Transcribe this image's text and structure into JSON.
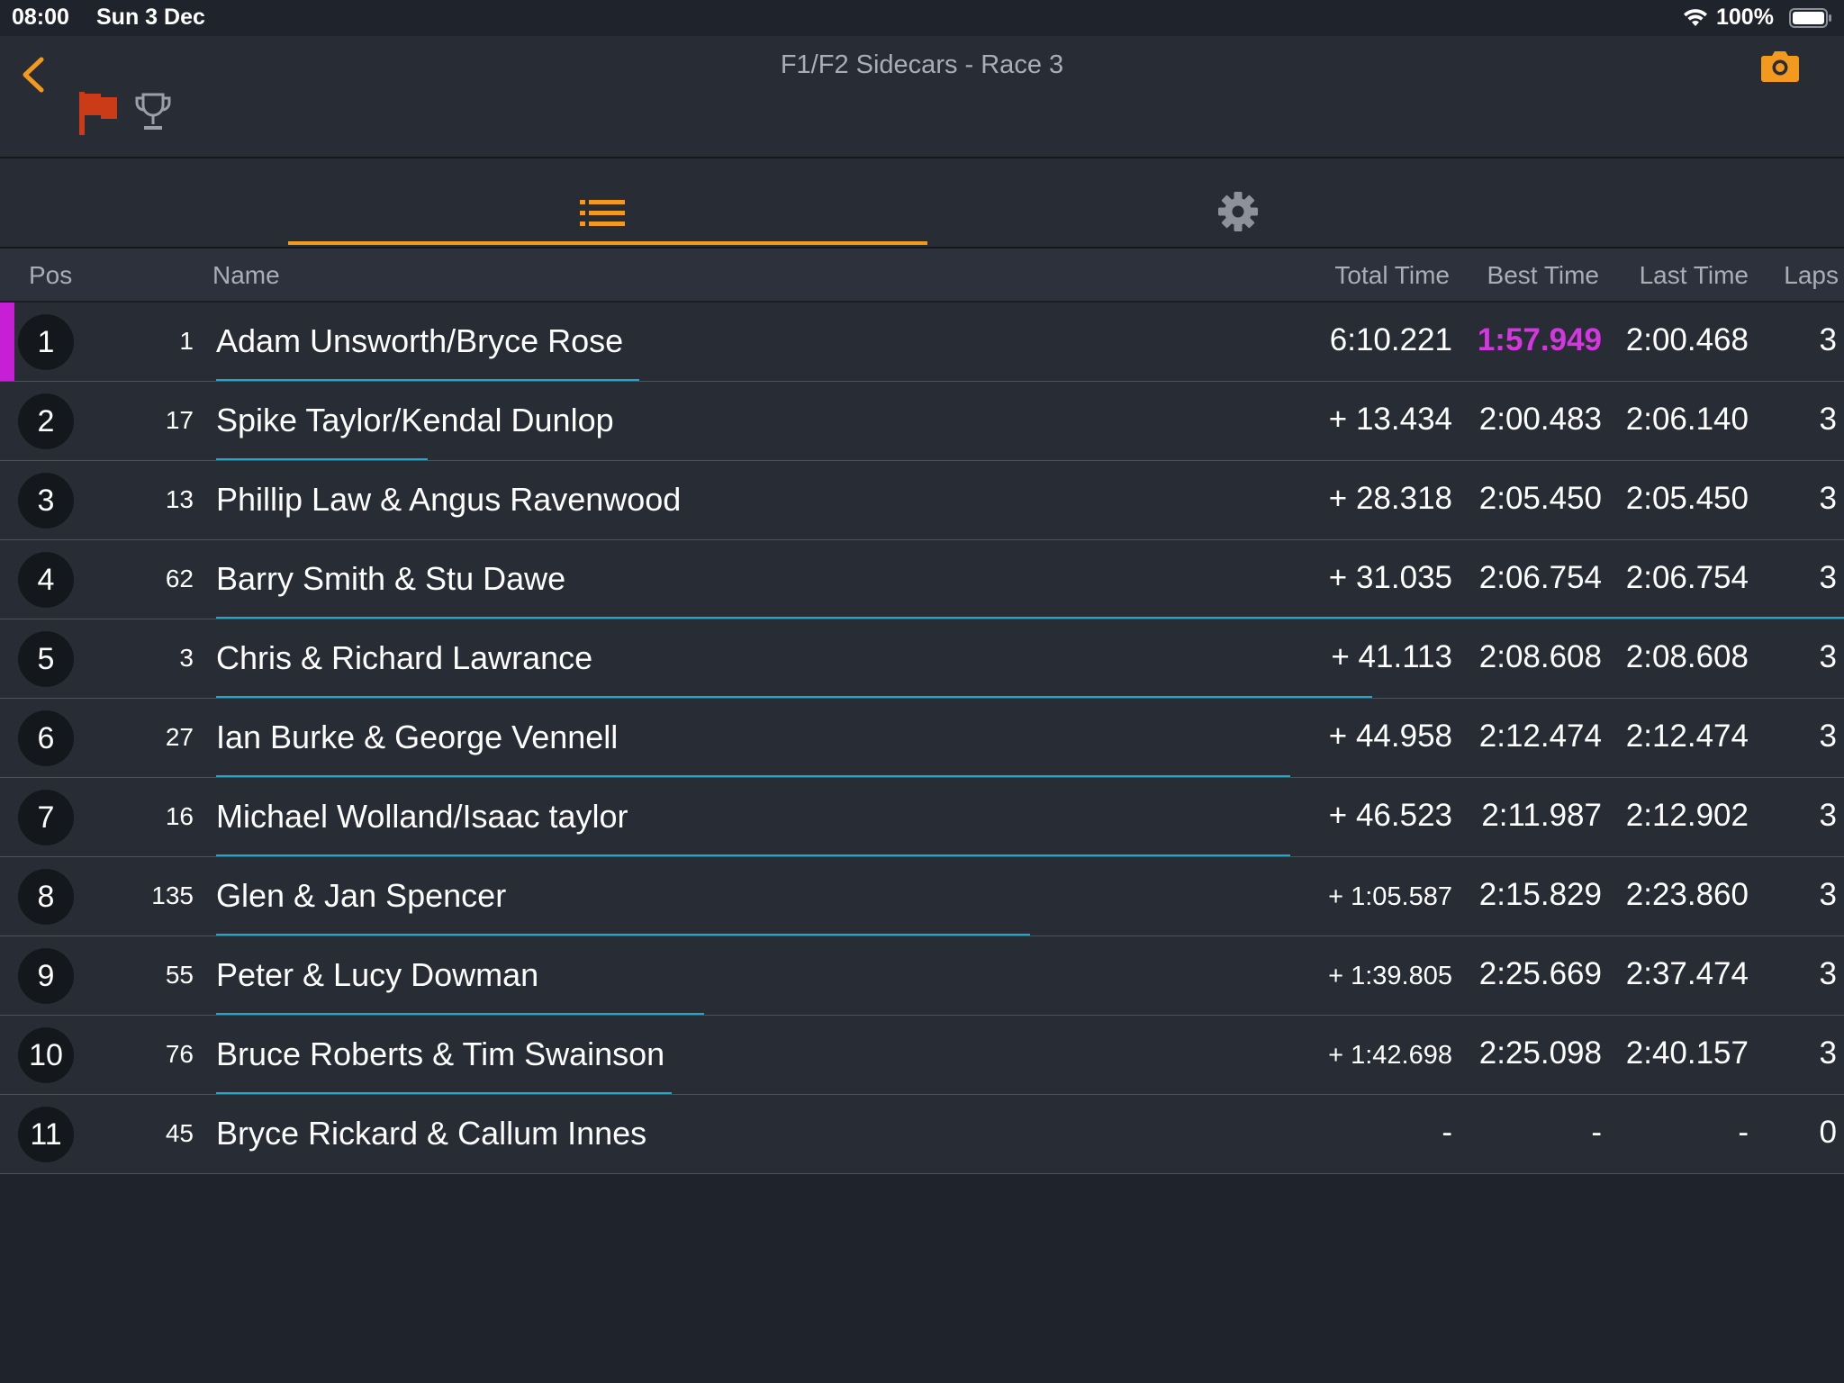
{
  "status_bar": {
    "time": "08:00",
    "date": "Sun 3 Dec",
    "battery_pct": "100%",
    "wifi_icon": "wifi-icon",
    "battery_icon": "battery-icon"
  },
  "nav": {
    "title": "F1/F2 Sidecars - Race 3",
    "back_icon": "chevron-left-icon",
    "flag_icon": "red-flag-icon",
    "trophy_icon": "trophy-icon",
    "camera_icon": "camera-icon"
  },
  "tabs": [
    {
      "icon": "list-icon",
      "selected": true
    },
    {
      "icon": "gear-icon",
      "selected": false
    }
  ],
  "colors": {
    "accent": "#f39a1e",
    "fastest": "#d636e0",
    "progress": "#23a7c9",
    "leader_marker": "#c61fd6"
  },
  "table": {
    "headers": {
      "pos": "Pos",
      "name": "Name",
      "total": "Total Time",
      "best": "Best Time",
      "last": "Last Time",
      "laps": "Laps"
    },
    "rows": [
      {
        "pos": "1",
        "num": "1",
        "name": "Adam Unsworth/Bryce Rose",
        "total": "6:10.221",
        "best": "1:57.949",
        "last": "2:00.468",
        "laps": "3",
        "progress": 0.26,
        "fastest": true,
        "leader": true
      },
      {
        "pos": "2",
        "num": "17",
        "name": "Spike Taylor/Kendal Dunlop",
        "total": "+ 13.434",
        "best": "2:00.483",
        "last": "2:06.140",
        "laps": "3",
        "progress": 0.13
      },
      {
        "pos": "3",
        "num": "13",
        "name": "Phillip Law & Angus Ravenwood",
        "total": "+ 28.318",
        "best": "2:05.450",
        "last": "2:05.450",
        "laps": "3",
        "progress": 0
      },
      {
        "pos": "4",
        "num": "62",
        "name": "Barry Smith & Stu Dawe",
        "total": "+ 31.035",
        "best": "2:06.754",
        "last": "2:06.754",
        "laps": "3",
        "progress": 1.0
      },
      {
        "pos": "5",
        "num": "3",
        "name": "Chris & Richard Lawrance",
        "total": "+ 41.113",
        "best": "2:08.608",
        "last": "2:08.608",
        "laps": "3",
        "progress": 0.71
      },
      {
        "pos": "6",
        "num": "27",
        "name": "Ian Burke & George Vennell",
        "total": "+ 44.958",
        "best": "2:12.474",
        "last": "2:12.474",
        "laps": "3",
        "progress": 0.66
      },
      {
        "pos": "7",
        "num": "16",
        "name": "Michael Wolland/Isaac taylor",
        "total": "+ 46.523",
        "best": "2:11.987",
        "last": "2:12.902",
        "laps": "3",
        "progress": 0.66
      },
      {
        "pos": "8",
        "num": "135",
        "name": "Glen & Jan Spencer",
        "total": "+ 1:05.587",
        "best": "2:15.829",
        "last": "2:23.860",
        "laps": "3",
        "progress": 0.5,
        "small_total": true
      },
      {
        "pos": "9",
        "num": "55",
        "name": "Peter & Lucy Dowman",
        "total": "+ 1:39.805",
        "best": "2:25.669",
        "last": "2:37.474",
        "laps": "3",
        "progress": 0.3,
        "small_total": true
      },
      {
        "pos": "10",
        "num": "76",
        "name": "Bruce Roberts & Tim Swainson",
        "total": "+ 1:42.698",
        "best": "2:25.098",
        "last": "2:40.157",
        "laps": "3",
        "progress": 0.28,
        "small_total": true
      },
      {
        "pos": "11",
        "num": "45",
        "name": "Bryce Rickard & Callum Innes",
        "total": "-",
        "best": "-",
        "last": "-",
        "laps": "0",
        "progress": 0
      }
    ]
  }
}
